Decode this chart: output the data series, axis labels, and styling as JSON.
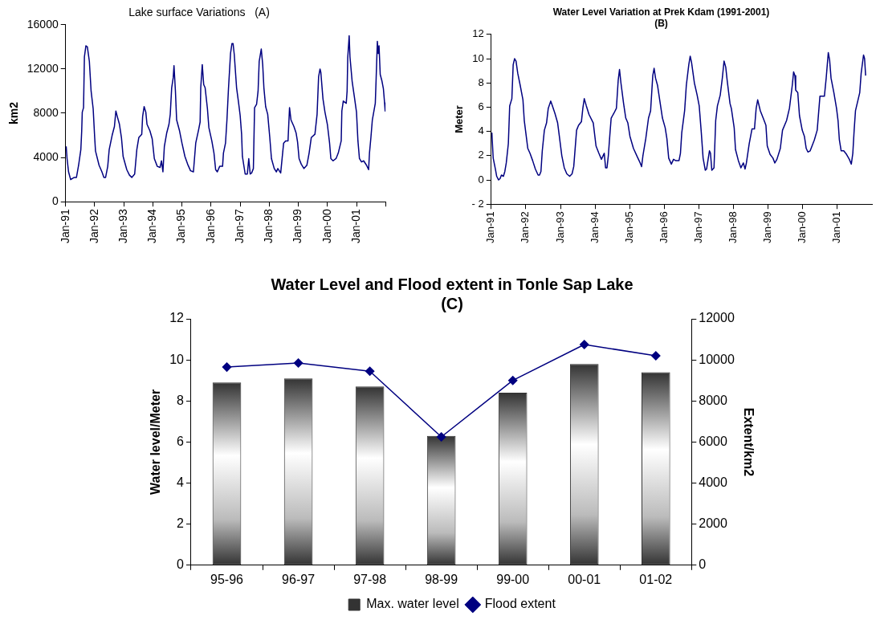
{
  "chart_data": [
    {
      "type": "line",
      "title": "Lake surface Variations   (A)",
      "ylabel": "km2",
      "xlim": [
        "1991-01",
        "2002-01"
      ],
      "ylim": [
        0,
        16000
      ],
      "yticks": [
        0,
        4000,
        8000,
        12000,
        16000
      ],
      "xticks": [
        {
          "value": "1991-01",
          "label": "Jan-91"
        },
        {
          "value": "1992-01",
          "label": "Jan-92"
        },
        {
          "value": "1993-01",
          "label": "Jan-93"
        },
        {
          "value": "1994-01",
          "label": "Jan-94"
        },
        {
          "value": "1995-01",
          "label": "Jan-95"
        },
        {
          "value": "1996-01",
          "label": "Jan-96"
        },
        {
          "value": "1997-01",
          "label": "Jan-97"
        },
        {
          "value": "1998-01",
          "label": "Jan-98"
        },
        {
          "value": "1999-01",
          "label": "Jan-99"
        },
        {
          "value": "2000-01",
          "label": "Jan-00"
        },
        {
          "value": "2001-01",
          "label": "Jan-01"
        },
        {
          "value": "2002-01",
          "label": null
        }
      ],
      "series": [
        {
          "color": "#000080",
          "x": [
            "1991-01-08",
            "1991-01-19",
            "1991-02-07",
            "1991-03-05",
            "1991-04-19",
            "1991-05-17",
            "1991-06-13",
            "1991-07-11",
            "1991-07-22",
            "1991-07-29",
            "1991-08-14",
            "1991-08-25",
            "1991-09-13",
            "1991-10-01",
            "1991-10-26",
            "1991-11-17",
            "1991-12-13",
            "1992-01-01",
            "1992-01-11",
            "1992-02-25",
            "1992-04-01",
            "1992-04-26",
            "1992-05-17",
            "1992-06-13",
            "1992-07-01",
            "1992-08-07",
            "1992-09-05",
            "1992-09-23",
            "1992-10-11",
            "1992-11-07",
            "1992-12-02",
            "1992-12-23",
            "1993-02-07",
            "1993-03-13",
            "1993-04-11",
            "1993-05-17",
            "1993-06-13",
            "1993-07-08",
            "1993-08-14",
            "1993-08-25",
            "1993-09-13",
            "1993-10-04",
            "1993-10-19",
            "1993-11-25",
            "1993-12-23",
            "1994-01-19",
            "1994-02-25",
            "1994-04-01",
            "1994-04-19",
            "1994-05-07",
            "1994-05-25",
            "1994-06-23",
            "1994-07-22",
            "1994-08-07",
            "1994-08-25",
            "1994-09-13",
            "1994-09-23",
            "1994-10-11",
            "1994-10-26",
            "1994-12-02",
            "1995-01-01",
            "1995-02-07",
            "1995-03-13",
            "1995-04-19",
            "1995-05-25",
            "1995-06-23",
            "1995-07-29",
            "1995-08-17",
            "1995-08-25",
            "1995-09-13",
            "1995-10-01",
            "1995-10-19",
            "1995-11-17",
            "1995-12-05",
            "1996-01-11",
            "1996-02-07",
            "1996-02-28",
            "1996-03-20",
            "1996-04-19",
            "1996-05-25",
            "1996-06-05",
            "1996-07-01",
            "1996-07-19",
            "1996-08-07",
            "1996-09-02",
            "1996-09-20",
            "1996-10-04",
            "1996-10-19",
            "1996-11-17",
            "1996-12-13",
            "1997-01-01",
            "1997-01-19",
            "1997-01-29",
            "1997-03-05",
            "1997-04-01",
            "1997-04-19",
            "1997-05-07",
            "1997-05-25",
            "1997-06-16",
            "1997-07-01",
            "1997-07-26",
            "1997-08-14",
            "1997-08-28",
            "1997-09-23",
            "1997-10-11",
            "1997-10-26",
            "1997-11-17",
            "1997-12-13",
            "1998-01-08",
            "1998-01-29",
            "1998-03-05",
            "1998-04-01",
            "1998-04-19",
            "1998-05-25",
            "1998-06-13",
            "1998-07-01",
            "1998-07-26",
            "1998-08-25",
            "1998-09-13",
            "1998-10-01",
            "1998-11-07",
            "1998-12-05",
            "1998-12-23",
            "1999-01-11",
            "1999-02-07",
            "1999-03-13",
            "1999-04-19",
            "1999-05-17",
            "1999-06-13",
            "1999-07-29",
            "1999-08-25",
            "1999-09-13",
            "1999-10-01",
            "1999-10-11",
            "1999-11-07",
            "1999-12-02",
            "2000-01-01",
            "2000-01-29",
            "2000-02-14",
            "2000-03-13",
            "2000-04-19",
            "2000-05-17",
            "2000-06-23",
            "2000-07-01",
            "2000-07-19",
            "2000-08-25",
            "2000-09-05",
            "2000-09-13",
            "2000-10-01",
            "2000-10-11",
            "2000-11-07",
            "2000-12-05",
            "2001-01-01",
            "2001-01-19",
            "2001-02-07",
            "2001-03-05",
            "2001-04-01",
            "2001-05-07",
            "2001-06-02",
            "2001-06-13",
            "2001-07-01",
            "2001-07-19",
            "2001-08-25",
            "2001-09-05",
            "2001-09-20",
            "2001-10-01",
            "2001-10-11",
            "2001-10-26",
            "2001-11-17",
            "2001-12-05",
            "2001-12-20",
            "2001-12-27"
          ],
          "values": [
            5000,
            3900,
            2700,
            2000,
            2200,
            2200,
            3300,
            4700,
            6400,
            8100,
            8500,
            13100,
            14100,
            14000,
            12700,
            10000,
            8400,
            5800,
            4600,
            3300,
            2700,
            2200,
            2200,
            3200,
            4700,
            6000,
            6800,
            8200,
            7700,
            7000,
            5800,
            4100,
            2900,
            2400,
            2200,
            2500,
            4700,
            5800,
            6100,
            7700,
            8600,
            8100,
            7000,
            6400,
            5700,
            3900,
            3200,
            3100,
            3700,
            2700,
            5000,
            6200,
            7000,
            7900,
            10300,
            11200,
            12300,
            10000,
            7400,
            6400,
            5300,
            4100,
            3400,
            2800,
            2700,
            5300,
            6500,
            7200,
            10300,
            12400,
            10600,
            10300,
            8400,
            6700,
            5500,
            4400,
            2900,
            2700,
            3200,
            3200,
            4400,
            5300,
            7400,
            10200,
            13400,
            14300,
            14300,
            13300,
            10300,
            8900,
            7800,
            6100,
            4100,
            2500,
            2500,
            3900,
            2500,
            2600,
            3000,
            8500,
            8800,
            10000,
            12700,
            13800,
            12400,
            10300,
            8600,
            7900,
            5800,
            3900,
            3000,
            2700,
            3000,
            2600,
            4000,
            5300,
            5500,
            5500,
            8500,
            7400,
            6800,
            6200,
            5400,
            3900,
            3400,
            3000,
            3300,
            4400,
            5800,
            6100,
            7900,
            11300,
            12000,
            11700,
            9300,
            8100,
            7000,
            5300,
            3900,
            3700,
            3900,
            4400,
            5500,
            8200,
            9100,
            8900,
            10000,
            13000,
            15000,
            13100,
            10900,
            9500,
            8100,
            5500,
            3900,
            3600,
            3700,
            3300,
            2900,
            4400,
            5800,
            7400,
            8900,
            11200,
            14500,
            13400,
            14100,
            11500,
            10900,
            10200,
            8900,
            8200
          ]
        }
      ]
    },
    {
      "type": "line",
      "title": "Water Level Variation at Prek Kdam (1991-2001) (B)",
      "ylabel": "Meter",
      "xlim": [
        "1991-01",
        "2002-01"
      ],
      "ylim": [
        -2,
        12
      ],
      "yticks": [
        {
          "value": -2,
          "label": "- 2"
        },
        0,
        2,
        4,
        6,
        8,
        10,
        12
      ],
      "xticks": [
        {
          "value": "1991-01",
          "label": "Jan-91"
        },
        {
          "value": "1992-01",
          "label": "Jan-92"
        },
        {
          "value": "1993-01",
          "label": "Jan-93"
        },
        {
          "value": "1994-01",
          "label": "Jan-94"
        },
        {
          "value": "1995-01",
          "label": "Jan-95"
        },
        {
          "value": "1996-01",
          "label": "Jan-96"
        },
        {
          "value": "1997-01",
          "label": "Jan-97"
        },
        {
          "value": "1998-01",
          "label": "Jan-98"
        },
        {
          "value": "1999-01",
          "label": "Jan-99"
        },
        {
          "value": "2000-01",
          "label": "Jan-00"
        },
        {
          "value": "2001-01",
          "label": "Jan-01"
        }
      ],
      "series": [
        {
          "color": "#000080",
          "x": [
            "1991-01-08",
            "1991-01-22",
            "1991-02-14",
            "1991-02-28",
            "1991-03-20",
            "1991-04-04",
            "1991-04-19",
            "1991-05-10",
            "1991-05-25",
            "1991-06-09",
            "1991-07-01",
            "1991-07-15",
            "1991-08-07",
            "1991-08-21",
            "1991-09-05",
            "1991-09-20",
            "1991-10-08",
            "1991-11-03",
            "1991-12-02",
            "1991-12-16",
            "1992-01-01",
            "1992-01-22",
            "1992-02-14",
            "1992-03-13",
            "1992-04-11",
            "1992-05-10",
            "1992-05-25",
            "1992-06-09",
            "1992-06-23",
            "1992-07-15",
            "1992-08-07",
            "1992-08-25",
            "1992-09-20",
            "1992-10-04",
            "1992-11-03",
            "1992-12-02",
            "1992-12-20",
            "1993-01-15",
            "1993-02-10",
            "1993-03-09",
            "1993-04-08",
            "1993-05-03",
            "1993-05-21",
            "1993-06-20",
            "1993-07-11",
            "1993-08-10",
            "1993-08-25",
            "1993-09-09",
            "1993-10-01",
            "1993-10-29",
            "1993-12-13",
            "1994-01-11",
            "1994-02-10",
            "1994-03-09",
            "1994-04-08",
            "1994-04-22",
            "1994-05-07",
            "1994-05-21",
            "1994-06-05",
            "1994-06-20",
            "1994-07-19",
            "1994-08-14",
            "1994-09-02",
            "1994-09-16",
            "1994-10-01",
            "1994-10-29",
            "1994-11-21",
            "1994-12-13",
            "1995-01-04",
            "1995-02-10",
            "1995-03-23",
            "1995-04-22",
            "1995-05-07",
            "1995-05-21",
            "1995-06-20",
            "1995-07-19",
            "1995-08-10",
            "1995-09-02",
            "1995-09-16",
            "1995-10-01",
            "1995-10-22",
            "1995-11-14",
            "1995-12-13",
            "1996-01-11",
            "1996-01-29",
            "1996-02-17",
            "1996-03-16",
            "1996-04-08",
            "1996-04-29",
            "1996-06-05",
            "1996-06-20",
            "1996-07-04",
            "1996-08-03",
            "1996-08-21",
            "1996-09-16",
            "1996-10-01",
            "1996-10-15",
            "1996-11-14",
            "1996-12-13",
            "1997-01-04",
            "1997-01-26",
            "1997-02-14",
            "1997-03-09",
            "1997-03-23",
            "1997-04-08",
            "1997-04-22",
            "1997-05-03",
            "1997-05-17",
            "1997-06-09",
            "1997-06-27",
            "1997-07-15",
            "1997-08-14",
            "1997-09-05",
            "1997-09-23",
            "1997-10-11",
            "1997-10-26",
            "1997-11-25",
            "1997-12-09",
            "1998-01-08",
            "1998-01-22",
            "1998-02-21",
            "1998-03-20",
            "1998-04-15",
            "1998-05-03",
            "1998-05-17",
            "1998-06-16",
            "1998-07-15",
            "1998-08-10",
            "1998-08-28",
            "1998-09-13",
            "1998-10-11",
            "1998-11-10",
            "1998-12-09",
            "1998-12-23",
            "1999-01-22",
            "1999-02-21",
            "1999-03-13",
            "1999-04-04",
            "1999-05-10",
            "1999-06-02",
            "1999-07-15",
            "1999-08-14",
            "1999-09-13",
            "1999-09-27",
            "1999-10-11",
            "1999-10-19",
            "1999-11-10",
            "1999-11-28",
            "1999-12-27",
            "2000-01-19",
            "2000-02-07",
            "2000-02-25",
            "2000-03-20",
            "2000-05-03",
            "2000-06-02",
            "2000-07-01",
            "2000-07-29",
            "2000-08-17",
            "2000-09-05",
            "2000-09-27",
            "2000-10-11",
            "2000-10-26",
            "2000-11-25",
            "2000-12-23",
            "2001-01-08",
            "2001-01-22",
            "2001-02-10",
            "2001-03-09",
            "2001-04-08",
            "2001-05-07",
            "2001-05-28",
            "2001-06-13",
            "2001-06-27",
            "2001-07-11",
            "2001-08-10",
            "2001-08-25",
            "2001-09-09",
            "2001-10-04",
            "2001-10-15",
            "2001-10-26"
          ],
          "values": [
            3.9,
            1.8,
            0.9,
            0.3,
            0,
            0.1,
            0.4,
            0.3,
            0.7,
            1.4,
            3,
            6.1,
            6.7,
            9.5,
            10,
            9.8,
            8.8,
            7.8,
            6.6,
            4.9,
            3.9,
            2.6,
            2.2,
            1.6,
            0.9,
            0.4,
            0.4,
            0.7,
            2.4,
            4.1,
            4.7,
            5.9,
            6.5,
            6.2,
            5.5,
            4.7,
            3.6,
            2,
            1,
            0.5,
            0.3,
            0.5,
            1.1,
            4.1,
            4.5,
            4.8,
            5.9,
            6.7,
            6.1,
            5.4,
            4.7,
            2.8,
            2.2,
            1.7,
            2.2,
            1,
            1,
            2,
            3.6,
            5.1,
            5.5,
            5.9,
            8.2,
            9.1,
            8,
            6.3,
            5.1,
            4.7,
            3.6,
            2.6,
            1.9,
            1.4,
            1.1,
            2,
            3.4,
            5.1,
            5.7,
            8.6,
            9.2,
            8.4,
            7.8,
            6.6,
            5.1,
            4.3,
            3.4,
            1.8,
            1.3,
            1.7,
            1.6,
            1.6,
            2.2,
            3.9,
            5.7,
            7.8,
            9.5,
            10.2,
            9.7,
            8,
            7,
            6.1,
            3.9,
            1.8,
            0.8,
            0.9,
            1.7,
            2.4,
            2.2,
            0.8,
            1,
            4.9,
            6.1,
            7,
            8.4,
            9.8,
            9.3,
            8.2,
            6.3,
            5.9,
            4.3,
            2.5,
            1.6,
            1,
            1.4,
            0.9,
            1.4,
            3,
            4.2,
            4.2,
            5.9,
            6.6,
            5.7,
            5.1,
            4.5,
            2.8,
            2.1,
            1.8,
            1.4,
            1.7,
            2.6,
            4.1,
            4.9,
            5.9,
            7.8,
            8.9,
            8.6,
            7.4,
            7.2,
            5.3,
            4.1,
            3.6,
            2.6,
            2.3,
            2.4,
            3.3,
            4.1,
            6.9,
            6.9,
            6.9,
            8.4,
            10.5,
            9.9,
            8.4,
            7.2,
            5.9,
            4.9,
            3.3,
            2.4,
            2.4,
            2.1,
            1.7,
            1.3,
            2.2,
            4.1,
            5.7,
            6.7,
            7.2,
            8.8,
            10.3,
            10,
            8.6
          ]
        }
      ]
    },
    {
      "type": "bar",
      "title": "Water Level and Flood extent in Tonle Sap Lake (C)",
      "ylabel": "Water level/Meter",
      "y2label": "Extent/km2",
      "categories": [
        "95-96",
        "96-97",
        "97-98",
        "98-99",
        "99-00",
        "00-01",
        "01-02"
      ],
      "ylim": [
        0,
        12
      ],
      "yticks": [
        0,
        2,
        4,
        6,
        8,
        10,
        12
      ],
      "y2lim": [
        0,
        12000
      ],
      "y2ticks": [
        0,
        2000,
        4000,
        6000,
        8000,
        10000,
        12000
      ],
      "legend": "bottom",
      "marker": "diamond",
      "series": [
        {
          "name": "Max. water level",
          "color": "#333333",
          "values": [
            8.9,
            9.1,
            8.7,
            6.3,
            8.4,
            9.8,
            9.4
          ]
        },
        {
          "name": "Flood extent",
          "type": "line",
          "axis": "y2",
          "color": "#000080",
          "values": [
            9650,
            9850,
            9450,
            6250,
            9000,
            10750,
            10200
          ]
        }
      ]
    }
  ]
}
